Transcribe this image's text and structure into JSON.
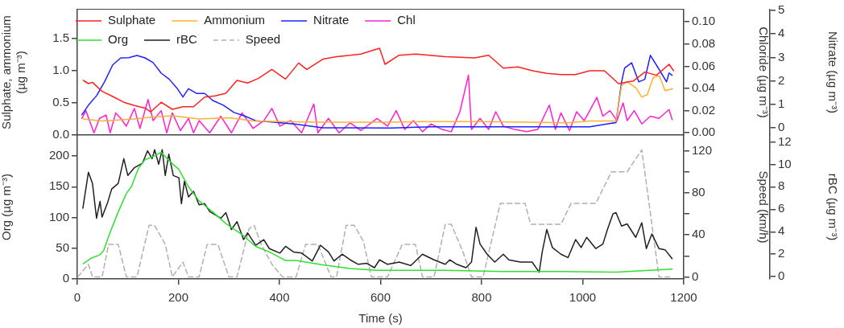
{
  "chart_data": [
    {
      "type": "line",
      "xlim": [
        0,
        1200
      ],
      "xticks": [
        0,
        200,
        400,
        600,
        800,
        1000,
        1200
      ],
      "tick_labels": "y",
      "ylabel": "Sulphate, ammonium (µg m⁻³)",
      "ylim": [
        0,
        1.95
      ],
      "yticks": [
        {
          "value": 0,
          "label": "0.0"
        },
        {
          "value": 0.5,
          "label": "0.5"
        },
        {
          "value": 1,
          "label": "1.0"
        },
        {
          "value": 1.5,
          "label": "1.5"
        }
      ],
      "y2label": "Chloride (µg m⁻³)",
      "y2lim": [
        -0.002,
        0.111
      ],
      "y2ticks": [
        {
          "value": 0,
          "label": "0.00"
        },
        {
          "value": 0.02,
          "label": "0.02"
        },
        {
          "value": 0.04,
          "label": "0.04"
        },
        {
          "value": 0.06,
          "label": "0.06"
        },
        {
          "value": 0.08,
          "label": "0.08"
        },
        {
          "value": 0.1,
          "label": "0.10"
        }
      ],
      "y3label": "Nitrate (µg m⁻³)",
      "y3lim": [
        -0.3,
        5.03
      ],
      "y3ticks": [
        0,
        1,
        2,
        3,
        4,
        5
      ],
      "grid": false,
      "legend": "top left",
      "series": [
        {
          "name": "Sulphate",
          "color": "#ff2020",
          "x": [
            12,
            22,
            30,
            49,
            70,
            92,
            113,
            134,
            145,
            166,
            188,
            209,
            230,
            252,
            273,
            294,
            316,
            337,
            358,
            385,
            412,
            438,
            454,
            486,
            513,
            540,
            561,
            598,
            609,
            636,
            671,
            728,
            786,
            814,
            843,
            872,
            901,
            929,
            957,
            986,
            1014,
            1043,
            1071,
            1100,
            1123,
            1146,
            1171,
            1180
          ],
          "values": [
            0.85,
            0.8,
            0.82,
            0.68,
            0.6,
            0.51,
            0.46,
            0.42,
            0.36,
            0.51,
            0.4,
            0.44,
            0.44,
            0.59,
            0.61,
            0.65,
            0.85,
            0.81,
            0.88,
            1.02,
            0.87,
            1.12,
            1.02,
            1.18,
            1.22,
            1.24,
            1.26,
            1.35,
            1.1,
            1.24,
            1.26,
            1.22,
            1.2,
            1.24,
            1.04,
            1.06,
            1.0,
            0.96,
            0.94,
            0.94,
            1.0,
            1.0,
            0.8,
            0.84,
            0.98,
            0.93,
            1.1,
            1.0
          ]
        },
        {
          "name": "Ammonium",
          "color": "#ffb030",
          "x": [
            12,
            49,
            113,
            150,
            188,
            241,
            300,
            350,
            400,
            486,
            614,
            700,
            786,
            901,
            969,
            1014,
            1066,
            1077,
            1088,
            1106,
            1117,
            1128,
            1140,
            1152,
            1163,
            1178
          ],
          "values": [
            0.25,
            0.22,
            0.25,
            0.28,
            0.3,
            0.25,
            0.27,
            0.22,
            0.21,
            0.2,
            0.2,
            0.21,
            0.21,
            0.2,
            0.19,
            0.22,
            0.22,
            0.77,
            0.83,
            0.73,
            0.59,
            0.63,
            0.9,
            0.92,
            0.69,
            0.72
          ]
        },
        {
          "name": "Nitrate",
          "color": "#2020ff",
          "axis": "y3",
          "x": [
            9,
            22,
            38,
            54,
            70,
            86,
            102,
            118,
            134,
            150,
            166,
            182,
            198,
            209,
            220,
            236,
            252,
            268,
            289,
            310,
            331,
            353,
            380,
            433,
            486,
            540,
            620,
            700,
            800,
            900,
            1014,
            1050,
            1066,
            1077,
            1083,
            1097,
            1111,
            1123,
            1134,
            1149,
            1166,
            1171,
            1177
          ],
          "values": [
            0.56,
            0.97,
            1.37,
            1.97,
            2.68,
            2.98,
            2.99,
            3.08,
            2.98,
            2.78,
            2.33,
            2.07,
            1.67,
            1.32,
            1.67,
            1.47,
            1.47,
            1.17,
            0.97,
            0.66,
            0.51,
            0.31,
            0.26,
            0.16,
            0.01,
            0.01,
            0.0,
            0.05,
            0.05,
            0.05,
            0.05,
            0.18,
            0.23,
            1.96,
            2.55,
            2.77,
            1.96,
            2.07,
            3.09,
            2.57,
            1.96,
            2.34,
            2.24
          ]
        },
        {
          "name": "Chl",
          "color": "#ff20d0",
          "axis": "y2",
          "x": [
            9,
            17,
            33,
            44,
            57,
            65,
            76,
            86,
            97,
            113,
            124,
            140,
            150,
            166,
            177,
            188,
            204,
            220,
            230,
            241,
            262,
            284,
            305,
            326,
            348,
            369,
            385,
            401,
            422,
            444,
            468,
            476,
            497,
            518,
            540,
            561,
            593,
            614,
            631,
            648,
            665,
            683,
            700,
            722,
            740,
            757,
            774,
            780,
            797,
            814,
            828,
            843,
            866,
            889,
            911,
            934,
            946,
            957,
            974,
            988,
            1003,
            1014,
            1028,
            1040,
            1054,
            1068,
            1080,
            1088,
            1102,
            1117,
            1134,
            1151,
            1171,
            1177
          ],
          "values": [
            0.013,
            0.02,
            0,
            0.013,
            0.016,
            0,
            0.018,
            0.013,
            0.006,
            0.022,
            0.004,
            0.03,
            0.011,
            0.02,
            0,
            0.018,
            0.002,
            0.013,
            0,
            0.011,
            0,
            0.015,
            0,
            0.018,
            0.004,
            0.011,
            0.022,
            0.006,
            0.011,
            0,
            0.026,
            0,
            0.013,
            0,
            0.009,
            0.002,
            0.013,
            0.006,
            0.02,
            0.003,
            0.011,
            0.001,
            0.008,
            0.003,
            0.001,
            0.019,
            0.052,
            0.003,
            0.013,
            0.003,
            0.019,
            0.006,
            0.003,
            0.001,
            0.003,
            0.025,
            0.003,
            0.018,
            0.002,
            0.019,
            0.011,
            0.02,
            0.032,
            0.015,
            0.02,
            0.011,
            0.027,
            0.011,
            0.02,
            0.008,
            0.015,
            0.013,
            0.021,
            0.012
          ]
        }
      ]
    },
    {
      "type": "line",
      "xlabel": "Time (s)",
      "xlim": [
        0,
        1200
      ],
      "xticks": [
        0,
        200,
        400,
        600,
        800,
        1000,
        1200
      ],
      "ylabel": "Org (µg m⁻³)",
      "ylim": [
        0,
        234
      ],
      "yticks": [
        0,
        50,
        100,
        150,
        200
      ],
      "y2label": "Speed (km/h)",
      "y2lim": [
        -2,
        135
      ],
      "y2ticks": [
        0,
        {
          "value": 20,
          "label": null
        },
        40,
        {
          "value": 60,
          "label": null
        },
        80,
        {
          "value": 100,
          "label": null
        },
        120
      ],
      "y3label": "rBC (µg m⁻³)",
      "y3lim": [
        -0.2,
        12.6
      ],
      "y3ticks": [
        0,
        2,
        4,
        6,
        8,
        10,
        12
      ],
      "grid": false,
      "legend": "top left",
      "series": [
        {
          "name": "Org",
          "color": "#30e030",
          "x": [
            12,
            28,
            44,
            52,
            65,
            81,
            97,
            107,
            121,
            134,
            150,
            166,
            182,
            201,
            220,
            241,
            268,
            294,
            326,
            353,
            380,
            412,
            433,
            486,
            540,
            593,
            646,
            728,
            843,
            957,
            1066,
            1177
          ],
          "values": [
            25,
            34,
            39,
            46,
            76,
            109,
            139,
            150,
            180,
            194,
            199,
            206,
            192,
            178,
            150,
            127,
            109,
            90,
            72,
            53,
            44,
            30,
            30,
            23,
            17,
            14,
            14,
            14,
            12,
            12,
            11,
            16
          ]
        },
        {
          "name": "rBC",
          "color": "#202020",
          "axis": "y3",
          "x": [
            11,
            22,
            30,
            38,
            45,
            49,
            60,
            68,
            81,
            92,
            100,
            113,
            129,
            139,
            148,
            153,
            161,
            168,
            174,
            181,
            190,
            201,
            206,
            212,
            220,
            230,
            241,
            252,
            262,
            273,
            284,
            294,
            305,
            316,
            329,
            337,
            353,
            369,
            380,
            401,
            412,
            428,
            444,
            465,
            481,
            497,
            508,
            524,
            540,
            556,
            572,
            588,
            598,
            614,
            637,
            660,
            683,
            706,
            728,
            737,
            751,
            769,
            780,
            789,
            797,
            811,
            826,
            843,
            854,
            877,
            900,
            914,
            920,
            929,
            940,
            957,
            971,
            986,
            997,
            1008,
            1026,
            1040,
            1049,
            1060,
            1066,
            1077,
            1088,
            1105,
            1117,
            1126,
            1137,
            1151,
            1163,
            1177
          ],
          "values": [
            6.1,
            9.3,
            8.3,
            5.2,
            6.7,
            5.3,
            6.6,
            7.8,
            8.3,
            10.5,
            9.0,
            9.7,
            10.1,
            11.2,
            10.5,
            11.3,
            10.0,
            11.3,
            9.0,
            10.9,
            9.0,
            8.8,
            6.5,
            8.5,
            7.1,
            7.6,
            6.4,
            6.5,
            5.8,
            5.5,
            5.2,
            5.7,
            4.2,
            4.9,
            3.3,
            3.9,
            2.8,
            3.3,
            2.5,
            2.1,
            2.7,
            2.2,
            2.1,
            1.4,
            2.8,
            2.2,
            1.4,
            2.0,
            1.5,
            1.1,
            1.2,
            0.8,
            1.5,
            1.1,
            1.3,
            1.0,
            2.0,
            1.5,
            1.1,
            1.5,
            1.1,
            0.8,
            1.3,
            4.4,
            2.9,
            2.0,
            1.3,
            2.0,
            1.5,
            1.3,
            1.3,
            0.4,
            2.2,
            4.2,
            2.6,
            2.0,
            1.7,
            3.3,
            2.6,
            3.5,
            2.5,
            2.9,
            4.2,
            5.6,
            5.7,
            4.5,
            4.7,
            3.5,
            4.8,
            2.5,
            3.8,
            2.5,
            2.4,
            1.6
          ]
        },
        {
          "name": "Speed",
          "color": "#b0b0b0",
          "axis": "y2",
          "line_style": "dashed",
          "x": [
            1,
            22,
            30,
            49,
            62,
            81,
            97,
            118,
            142,
            153,
            174,
            188,
            209,
            220,
            241,
            257,
            278,
            300,
            316,
            340,
            350,
            364,
            385,
            406,
            433,
            452,
            476,
            502,
            513,
            532,
            548,
            566,
            582,
            614,
            643,
            669,
            683,
            706,
            728,
            740,
            763,
            780,
            803,
            837,
            886,
            897,
            957,
            977,
            1026,
            1057,
            1088,
            1117,
            1151,
            1174
          ],
          "values": [
            0,
            12,
            0,
            0,
            31,
            31,
            0,
            0,
            49,
            49,
            31,
            0,
            14,
            0,
            0,
            31,
            31,
            0,
            0,
            46,
            49,
            31,
            12,
            0,
            0,
            31,
            31,
            0,
            0,
            49,
            49,
            34,
            0,
            0,
            31,
            31,
            0,
            0,
            50,
            50,
            24,
            0,
            0,
            70,
            70,
            50,
            50,
            70,
            70,
            100,
            100,
            121,
            0,
            0
          ]
        }
      ]
    }
  ]
}
